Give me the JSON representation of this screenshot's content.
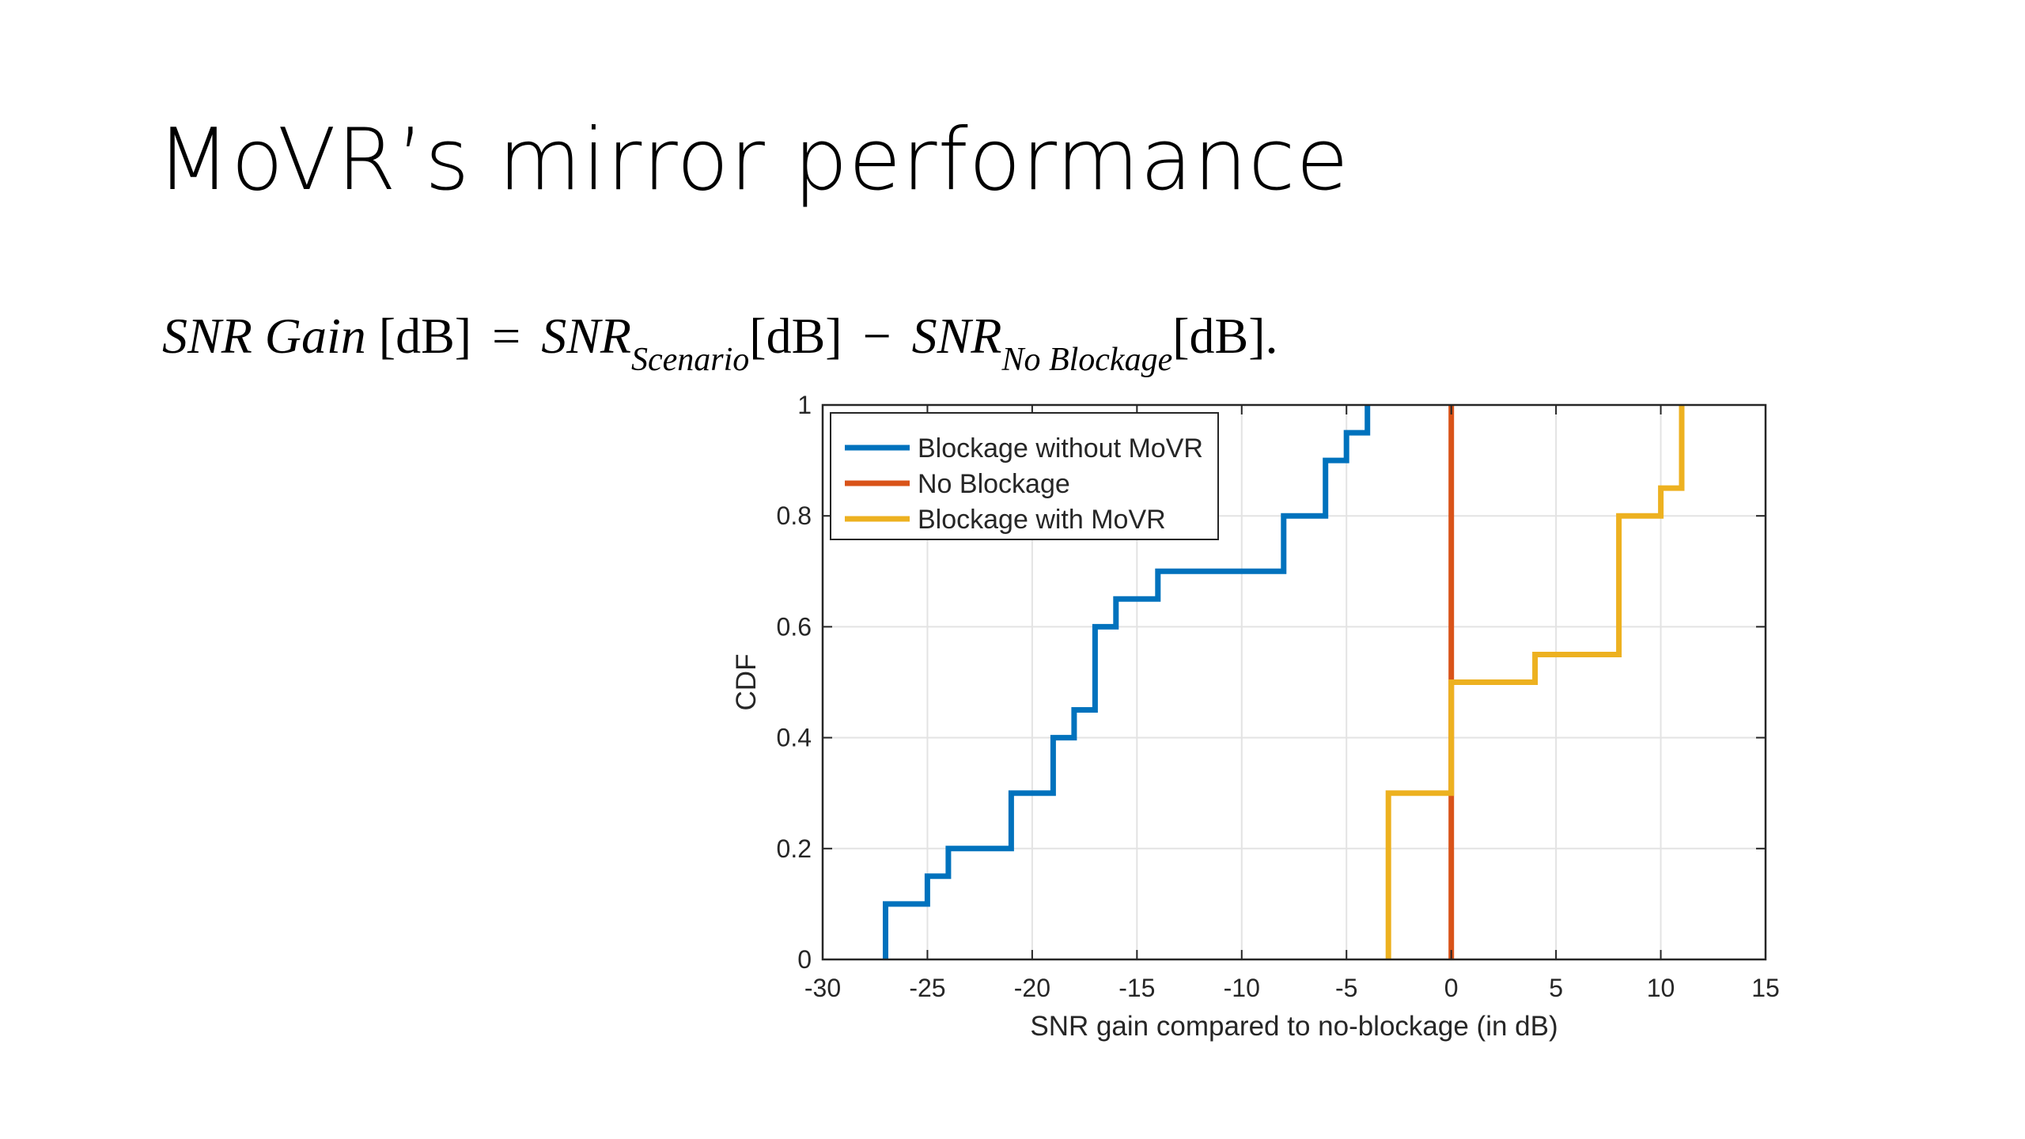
{
  "slide": {
    "title": "MoVR’s mirror performance"
  },
  "formula": {
    "lhs_a": "SNR Gain",
    "lhs_unit": "[dB]",
    "equals": "=",
    "term1": "SNR",
    "term1_sub": "Scenario",
    "term1_unit": "[dB]",
    "minus": "−",
    "term2": "SNR",
    "term2_sub": "No Blockage",
    "term2_unit": "[dB]",
    "end": "."
  },
  "chart_data": {
    "type": "line",
    "step": true,
    "xlabel": "SNR gain compared to no-blockage (in dB)",
    "ylabel": "CDF",
    "xlim": [
      -30,
      15
    ],
    "ylim": [
      0,
      1
    ],
    "xticks": [
      -30,
      -25,
      -20,
      -15,
      -10,
      -5,
      0,
      5,
      10,
      15
    ],
    "yticks": [
      0,
      0.2,
      0.4,
      0.6,
      0.8,
      1
    ],
    "xtick_labels": [
      "-30",
      "-25",
      "-20",
      "-15",
      "-10",
      "-5",
      "0",
      "5",
      "10",
      "15"
    ],
    "ytick_labels": [
      "0",
      "0.2",
      "0.4",
      "0.6",
      "0.8",
      "1"
    ],
    "grid": true,
    "legend_position": "top-left",
    "series": [
      {
        "name": "Blockage without MoVR",
        "color": "#0072BD",
        "x": [
          -27,
          -27,
          -25,
          -25,
          -24,
          -24,
          -21,
          -21,
          -19,
          -19,
          -18,
          -18,
          -17,
          -17,
          -16,
          -16,
          -14,
          -14,
          -8,
          -8,
          -6,
          -6,
          -5,
          -5,
          -4,
          -4
        ],
        "y": [
          0,
          0.1,
          0.1,
          0.15,
          0.15,
          0.2,
          0.2,
          0.3,
          0.3,
          0.4,
          0.4,
          0.45,
          0.45,
          0.6,
          0.6,
          0.65,
          0.65,
          0.7,
          0.7,
          0.8,
          0.8,
          0.9,
          0.9,
          0.95,
          0.95,
          1
        ]
      },
      {
        "name": "No Blockage",
        "color": "#D95319",
        "x": [
          0,
          0
        ],
        "y": [
          0,
          1
        ]
      },
      {
        "name": "Blockage with MoVR",
        "color": "#EDB120",
        "x": [
          -3,
          -3,
          0,
          0,
          4,
          4,
          8,
          8,
          10,
          10,
          11,
          11
        ],
        "y": [
          0,
          0.3,
          0.3,
          0.5,
          0.5,
          0.55,
          0.55,
          0.8,
          0.8,
          0.85,
          0.85,
          1
        ]
      }
    ]
  }
}
